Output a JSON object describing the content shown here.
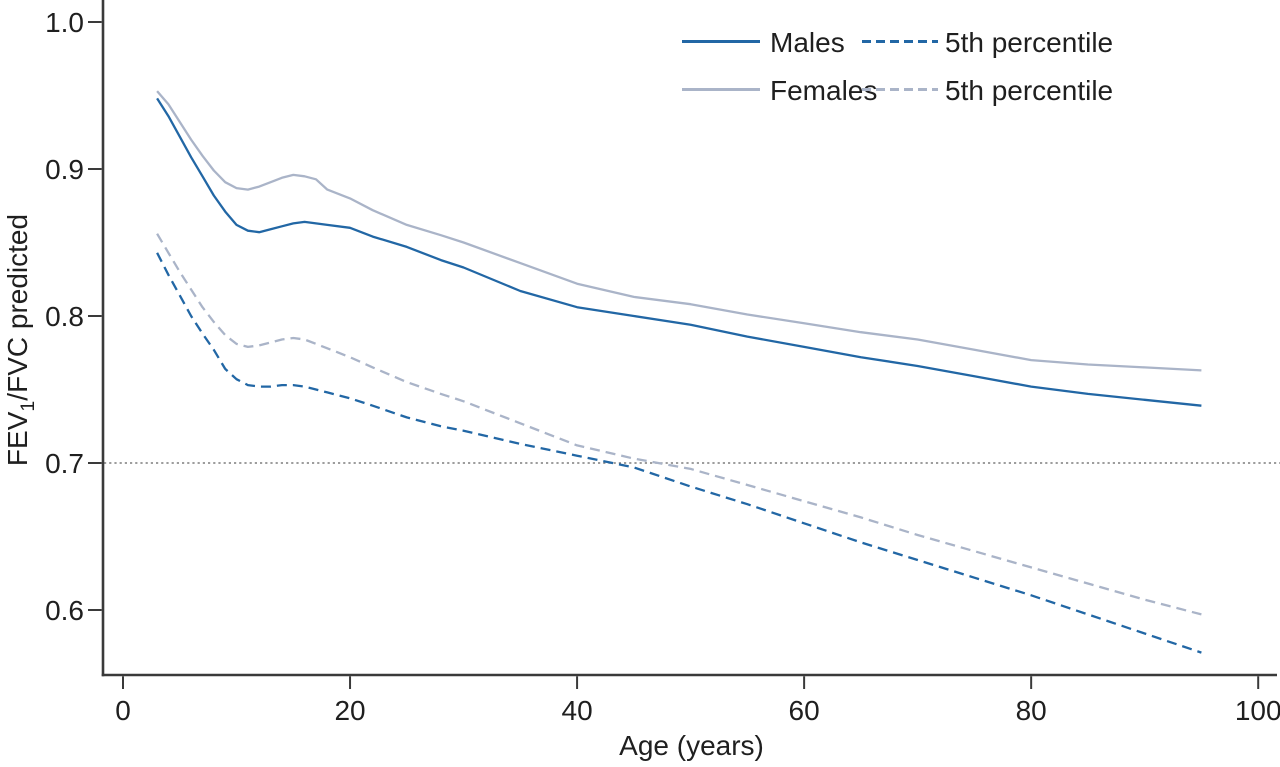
{
  "figure": {
    "xlabel": "Age (years)",
    "ylabel": {
      "prefix": "FEV",
      "sub": "1",
      "rest": "/FVC predicted"
    },
    "legend": {
      "males": "Males",
      "females": "Females",
      "male_5th": "5th percentile",
      "female_5th": "5th percentile"
    },
    "colors": {
      "males": "#2267a5",
      "females": "#aab4c8",
      "axis": "#3a3a3a",
      "text": "#1f1f1f",
      "reference": "#7d7d7d"
    }
  },
  "chart_data": {
    "type": "line",
    "title": "",
    "xlabel": "Age (years)",
    "ylabel": "FEV1/FVC predicted",
    "xlim": [
      -1.8,
      102
    ],
    "ylim": [
      0.556,
      1.015
    ],
    "x_ticks": [
      0,
      20,
      40,
      60,
      80,
      100
    ],
    "y_tick_labels": [
      "1.0",
      "0.9",
      "0.8",
      "0.7",
      "0.6"
    ],
    "y_tick_values": [
      1.0,
      0.9,
      0.8,
      0.7,
      0.6
    ],
    "grid": false,
    "legend_position": "top-right",
    "reference_line": {
      "y": 0.7,
      "style": "dotted"
    },
    "x": [
      3,
      4,
      5,
      6,
      7,
      8,
      9,
      10,
      11,
      12,
      13,
      14,
      15,
      16,
      17,
      18,
      20,
      22,
      25,
      28,
      30,
      35,
      40,
      45,
      50,
      55,
      60,
      65,
      70,
      75,
      80,
      85,
      90,
      95
    ],
    "series": [
      {
        "name": "Males",
        "style": "solid",
        "color_key": "males",
        "values": [
          0.948,
          0.936,
          0.922,
          0.908,
          0.895,
          0.882,
          0.871,
          0.862,
          0.858,
          0.857,
          0.859,
          0.861,
          0.863,
          0.864,
          0.863,
          0.862,
          0.86,
          0.854,
          0.847,
          0.838,
          0.833,
          0.817,
          0.806,
          0.8,
          0.794,
          0.786,
          0.779,
          0.772,
          0.766,
          0.759,
          0.752,
          0.747,
          0.743,
          0.739
        ]
      },
      {
        "name": "Females",
        "style": "solid",
        "color_key": "females",
        "values": [
          0.953,
          0.944,
          0.932,
          0.92,
          0.909,
          0.899,
          0.891,
          0.887,
          0.886,
          0.888,
          0.891,
          0.894,
          0.896,
          0.895,
          0.893,
          0.886,
          0.88,
          0.872,
          0.862,
          0.855,
          0.85,
          0.836,
          0.822,
          0.813,
          0.808,
          0.801,
          0.795,
          0.789,
          0.784,
          0.777,
          0.77,
          0.767,
          0.765,
          0.763
        ]
      },
      {
        "name": "5th percentile",
        "group": "Males",
        "style": "dashed",
        "color_key": "males",
        "values": [
          0.843,
          0.828,
          0.814,
          0.8,
          0.788,
          0.777,
          0.764,
          0.757,
          0.753,
          0.752,
          0.752,
          0.753,
          0.753,
          0.752,
          0.75,
          0.748,
          0.744,
          0.739,
          0.731,
          0.725,
          0.722,
          0.713,
          0.705,
          0.697,
          0.684,
          0.672,
          0.659,
          0.646,
          0.634,
          0.622,
          0.61,
          0.597,
          0.584,
          0.571
        ]
      },
      {
        "name": "5th percentile",
        "group": "Females",
        "style": "dashed",
        "color_key": "females",
        "values": [
          0.856,
          0.843,
          0.83,
          0.818,
          0.806,
          0.796,
          0.787,
          0.781,
          0.779,
          0.78,
          0.782,
          0.784,
          0.785,
          0.784,
          0.781,
          0.778,
          0.772,
          0.765,
          0.755,
          0.747,
          0.742,
          0.727,
          0.712,
          0.703,
          0.696,
          0.685,
          0.674,
          0.663,
          0.651,
          0.64,
          0.629,
          0.618,
          0.607,
          0.597
        ]
      }
    ]
  }
}
